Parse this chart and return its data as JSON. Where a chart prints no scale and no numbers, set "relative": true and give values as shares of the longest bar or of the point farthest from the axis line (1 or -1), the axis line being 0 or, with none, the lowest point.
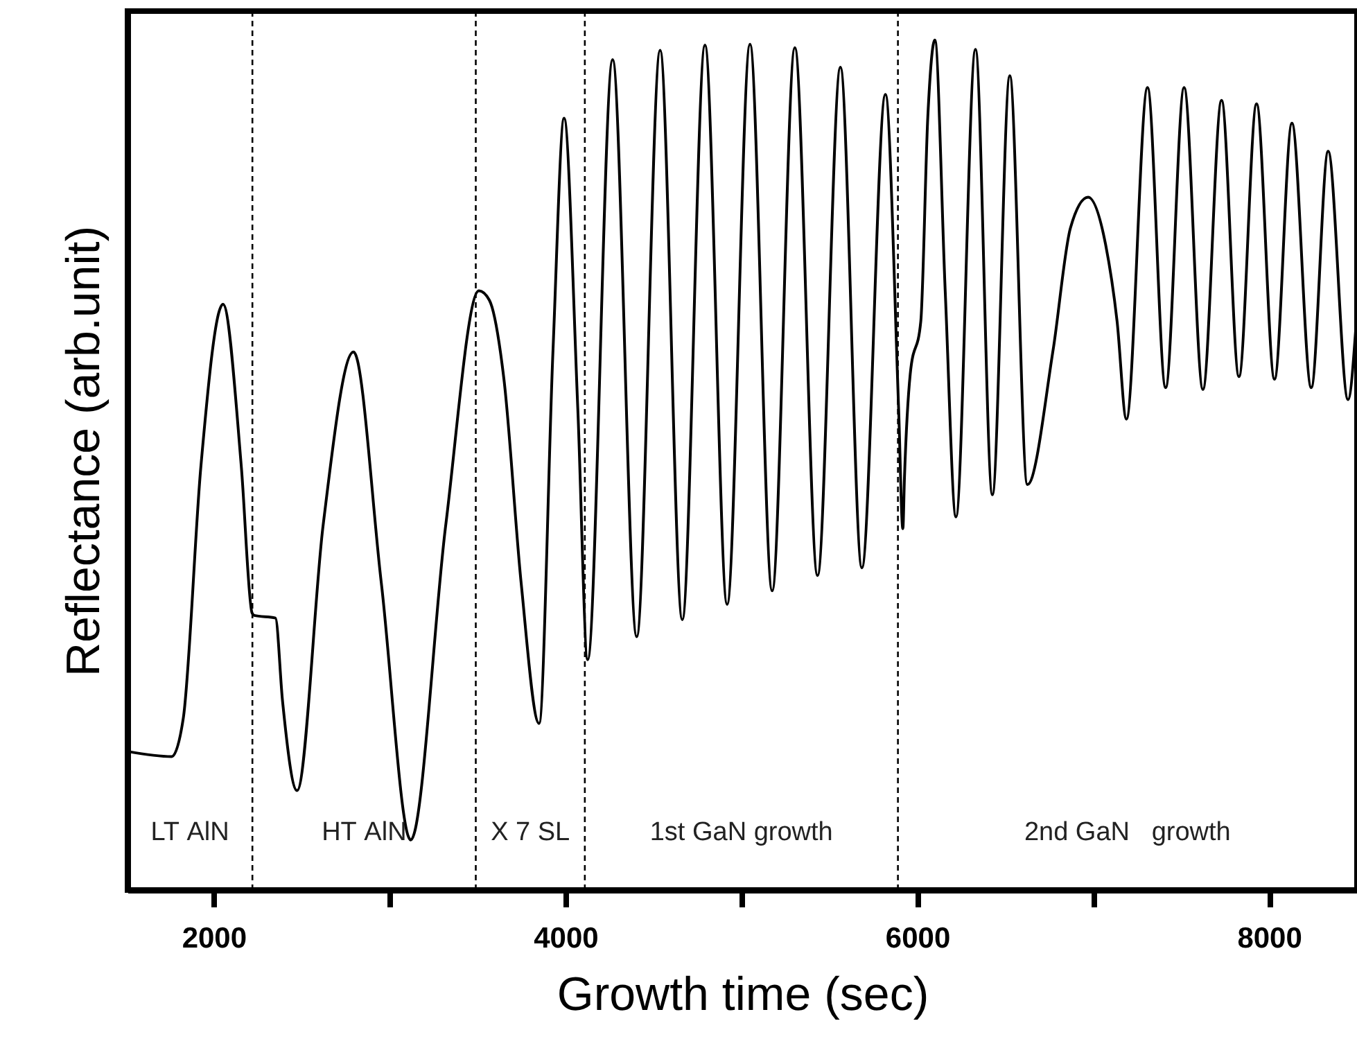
{
  "chart_data": {
    "type": "line",
    "xlabel": "Growth time (sec)",
    "ylabel": "Reflectance (arb.unit)",
    "relative": true,
    "grid": false,
    "marker": "none",
    "line_style": "solid",
    "xlim": [
      1510,
      8500
    ],
    "xticks": [
      2000,
      {
        "value": 3000,
        "label": null
      },
      4000,
      {
        "value": 5000,
        "label": null
      },
      6000,
      {
        "value": 7000,
        "label": null
      },
      8000
    ],
    "series": [
      {
        "color": "#000000",
        "x": [
          1512,
          1761,
          1827,
          1927,
          2053,
          2157,
          2218,
          2231,
          2351,
          2391,
          2474,
          2622,
          2795,
          2953,
          3120,
          3319,
          3508,
          3567,
          3650,
          3748,
          3850,
          3929,
          3992,
          4070,
          4126,
          4268,
          4405,
          4538,
          4664,
          4793,
          4919,
          5049,
          5175,
          5304,
          5433,
          5563,
          5685,
          5819,
          5894,
          5918,
          5927,
          5960,
          6020,
          6060,
          6100,
          6159,
          6220,
          6331,
          6427,
          6526,
          6626,
          6772,
          6871,
          6971,
          7071,
          7136,
          7189,
          7309,
          7412,
          7517,
          7624,
          7730,
          7829,
          7929,
          8031,
          8130,
          8240,
          8336,
          8449,
          8496
        ],
        "values": [
          0.163,
          0.157,
          0.202,
          0.498,
          0.689,
          0.498,
          0.326,
          0.323,
          0.32,
          0.223,
          0.117,
          0.429,
          0.633,
          0.361,
          0.059,
          0.429,
          0.705,
          0.694,
          0.601,
          0.361,
          0.196,
          0.635,
          0.908,
          0.566,
          0.271,
          0.977,
          0.298,
          0.988,
          0.318,
          0.994,
          0.336,
          0.995,
          0.352,
          0.991,
          0.37,
          0.968,
          0.379,
          0.936,
          0.566,
          0.425,
          0.484,
          0.607,
          0.669,
          0.91,
          1.0,
          0.704,
          0.439,
          0.989,
          0.465,
          0.958,
          0.477,
          0.635,
          0.779,
          0.815,
          0.759,
          0.669,
          0.554,
          0.944,
          0.591,
          0.944,
          0.589,
          0.929,
          0.604,
          0.925,
          0.601,
          0.902,
          0.591,
          0.869,
          0.577,
          0.669
        ]
      }
    ],
    "ref_lines": [
      {
        "axis": "x",
        "value": 2220,
        "line_style": "dashed",
        "color": "#000000"
      },
      {
        "axis": "x",
        "value": 3490,
        "line_style": "dashed",
        "color": "#000000"
      },
      {
        "axis": "x",
        "value": 4110,
        "line_style": "dashed",
        "color": "#000000"
      },
      {
        "axis": "x",
        "value": 5890,
        "line_style": "dashed",
        "color": "#000000"
      }
    ],
    "annotations": [
      "LT AlN",
      "HT AlN",
      "X 7 SL",
      "1st GaN growth",
      "2nd GaN   growth"
    ]
  }
}
